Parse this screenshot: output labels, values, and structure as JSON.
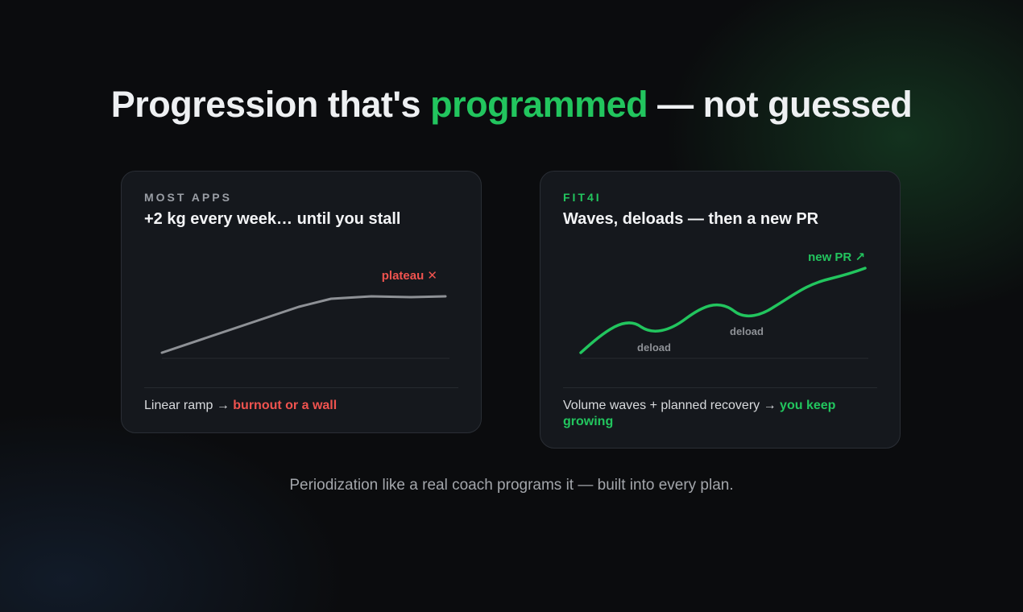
{
  "header": {
    "title_start": "Progression that's",
    "title_highlight": "programmed",
    "title_end": "— not guessed"
  },
  "cards": [
    {
      "eyebrow": "MOST APPS",
      "title": "+2 kg every week… until you stall",
      "annotations": [
        "plateau ✕"
      ],
      "footer_text": "Linear ramp →",
      "footer_highlight": "burnout or a wall"
    },
    {
      "eyebrow": "FIT4I",
      "title": "Waves, deloads — then a new PR",
      "annotations": [
        "new PR ↗",
        "deload",
        "deload"
      ],
      "footer_text": "Volume waves + planned recovery →",
      "footer_highlight": "you keep growing"
    }
  ],
  "caption": "Periodization like a real coach programs it — built into every plan."
}
